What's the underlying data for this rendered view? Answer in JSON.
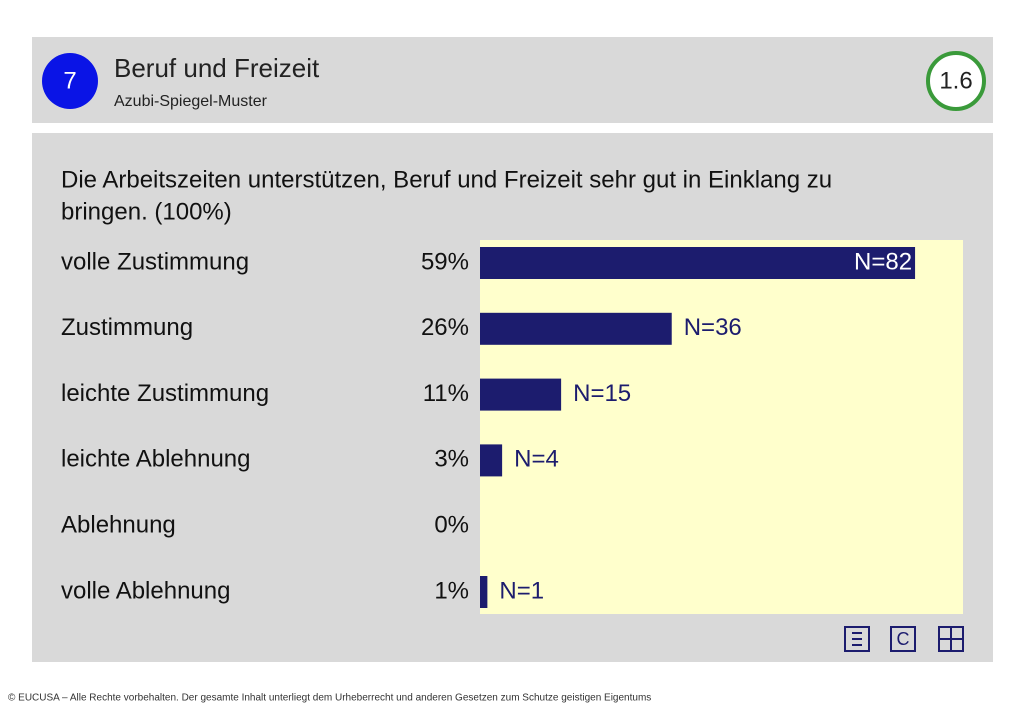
{
  "header": {
    "badge": "7",
    "title": "Beruf und Freizeit",
    "subtitle": "Azubi-Spiegel-Muster",
    "slide_number": "1.6"
  },
  "chart_data": {
    "type": "hbar",
    "title": "Die Arbeitszeiten unterstützen, Beruf und Freizeit sehr gut in Einklang zu",
    "title_line2": "bringen. (100%)",
    "categories": [
      "volle Zustimmung",
      "Zustimmung",
      "leichte Zustimmung",
      "leichte Ablehnung",
      "Ablehnung",
      "volle Ablehnung"
    ],
    "values": [
      59,
      26,
      11,
      3,
      0,
      1
    ],
    "value_labels": [
      "59%",
      "26%",
      "11%",
      "3%",
      "0%",
      "1%"
    ],
    "count_labels": [
      "N=82",
      "N=36",
      "N=15",
      "N=4",
      null,
      "N=1"
    ],
    "color": "#1c1c6e",
    "xlim": [
      0,
      65.5
    ]
  },
  "nav": {
    "c": "C"
  },
  "footer": "© EUCUSA – Alle Rechte vorbehalten. Der gesamte Inhalt unterliegt dem Urheberrecht und anderen Gesetzen zum Schutze geistigen Eigentums"
}
